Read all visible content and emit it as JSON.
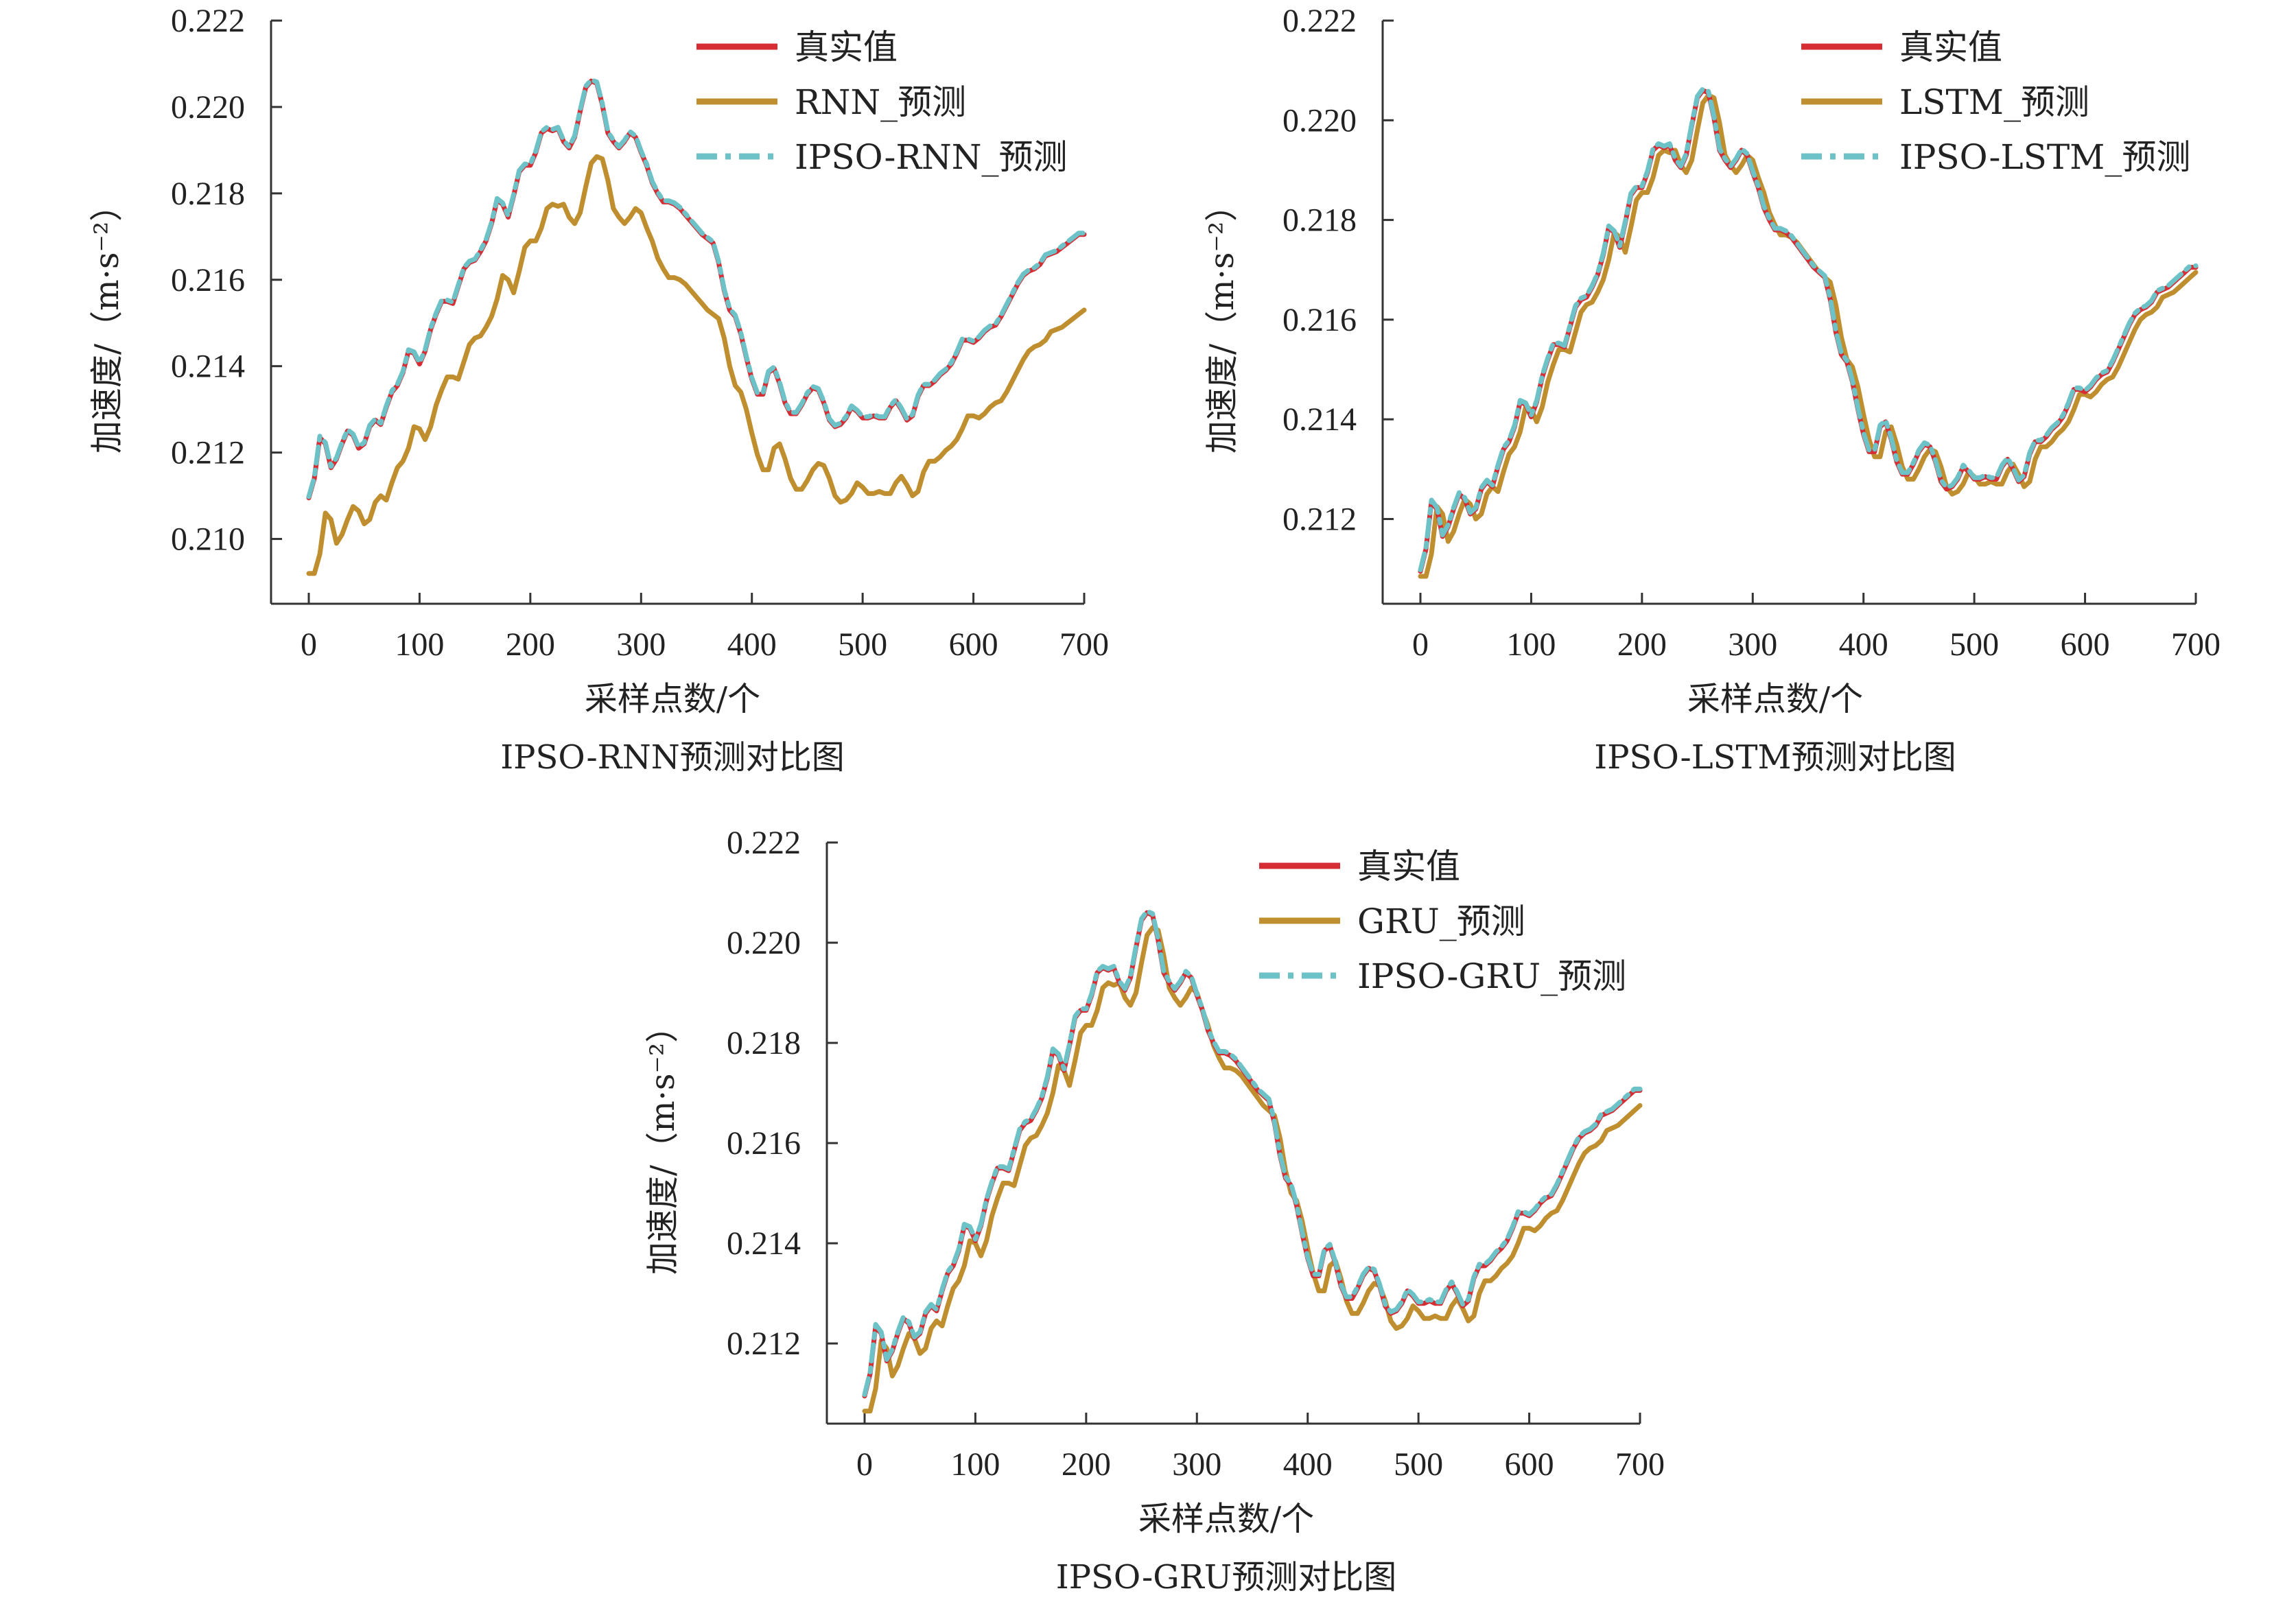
{
  "colors": {
    "actual": "#d62d34",
    "baseline": "#bf8f2f",
    "ipso": "#6cc2c6",
    "axis": "#333333"
  },
  "panel_a": {
    "xlabel": "采样点数/个",
    "ylabel": "加速度/（m·s⁻²）",
    "caption": "IPSO-RNN预测对比图",
    "legend": [
      "真实值",
      "RNN_预测",
      "IPSO-RNN_预测"
    ]
  },
  "panel_b": {
    "xlabel": "采样点数/个",
    "ylabel": "加速度/（m·s⁻²）",
    "caption": "IPSO-LSTM预测对比图",
    "legend": [
      "真实值",
      "LSTM_预测",
      "IPSO-LSTM_预测"
    ]
  },
  "panel_c": {
    "xlabel": "采样点数/个",
    "ylabel": "加速度/（m·s⁻²）",
    "caption": "IPSO-GRU预测对比图",
    "legend": [
      "真实值",
      "GRU_预测",
      "IPSO-GRU_预测"
    ]
  },
  "chart_data": [
    {
      "type": "line",
      "title": "",
      "xlabel": "采样点数/个",
      "ylabel": "加速度/（m·s⁻²）",
      "xlim": [
        0,
        700
      ],
      "ylim": [
        0.2085,
        0.222
      ],
      "xticks": [
        "0",
        "100",
        "200",
        "300",
        "400",
        "500",
        "600",
        "700"
      ],
      "yticks": [
        "0.210",
        "0.212",
        "0.214",
        "0.216",
        "0.218",
        "0.220",
        "0.222"
      ],
      "legend_position": "top-right",
      "grid": false,
      "series": [
        {
          "name": "真实值",
          "style": "solid",
          "x": [
            0,
            5,
            10,
            15,
            20,
            25,
            30,
            35,
            40,
            45,
            50,
            55,
            60,
            65,
            70,
            75,
            80,
            85,
            90,
            95,
            100,
            105,
            110,
            115,
            120,
            125,
            130,
            135,
            140,
            145,
            150,
            155,
            160,
            165,
            170,
            175,
            180,
            185,
            190,
            195,
            200,
            205,
            210,
            215,
            220,
            225,
            230,
            235,
            240,
            245,
            250,
            255,
            260,
            265,
            270,
            275,
            280,
            285,
            290,
            295,
            300,
            305,
            310,
            315,
            320,
            325,
            330,
            335,
            340,
            345,
            350,
            355,
            360,
            365,
            370,
            375,
            380,
            385,
            390,
            395,
            400,
            405,
            410,
            415,
            420,
            425,
            430,
            435,
            440,
            445,
            450,
            455,
            460,
            465,
            470,
            475,
            480,
            485,
            490,
            495,
            500,
            505,
            510,
            515,
            520,
            525,
            530,
            535,
            540,
            545,
            550,
            555,
            560,
            565,
            570,
            575,
            580,
            585,
            590,
            595,
            600,
            605,
            610,
            615,
            620,
            625,
            630,
            635,
            640,
            645,
            650,
            655,
            660,
            665,
            670,
            675,
            680,
            685,
            690,
            695,
            700
          ],
          "y": [
            0.21095,
            0.2114,
            0.21235,
            0.2122,
            0.21165,
            0.21185,
            0.2122,
            0.2125,
            0.2124,
            0.2121,
            0.2122,
            0.2126,
            0.21275,
            0.21265,
            0.21305,
            0.2134,
            0.21355,
            0.21385,
            0.21435,
            0.2143,
            0.21405,
            0.21435,
            0.21485,
            0.2152,
            0.2155,
            0.2155,
            0.21545,
            0.21585,
            0.21625,
            0.2164,
            0.21645,
            0.21665,
            0.2169,
            0.2173,
            0.21785,
            0.21775,
            0.21745,
            0.21795,
            0.2185,
            0.21865,
            0.21865,
            0.21895,
            0.2194,
            0.2195,
            0.21945,
            0.2195,
            0.2192,
            0.21905,
            0.2193,
            0.2199,
            0.22045,
            0.2206,
            0.22055,
            0.22005,
            0.2194,
            0.2192,
            0.21905,
            0.2192,
            0.2194,
            0.2193,
            0.21895,
            0.21865,
            0.21825,
            0.218,
            0.2178,
            0.2178,
            0.21775,
            0.21765,
            0.2175,
            0.21735,
            0.2172,
            0.21705,
            0.21695,
            0.21685,
            0.2164,
            0.21575,
            0.2153,
            0.21515,
            0.21475,
            0.2142,
            0.2137,
            0.21335,
            0.21335,
            0.21385,
            0.21395,
            0.2136,
            0.21315,
            0.2129,
            0.2129,
            0.2131,
            0.21335,
            0.2135,
            0.21345,
            0.21315,
            0.21275,
            0.2126,
            0.21265,
            0.2128,
            0.21305,
            0.21295,
            0.2128,
            0.2128,
            0.21285,
            0.2128,
            0.2128,
            0.21305,
            0.2132,
            0.213,
            0.21275,
            0.21285,
            0.2133,
            0.21355,
            0.21355,
            0.21365,
            0.2138,
            0.2139,
            0.21405,
            0.2143,
            0.2146,
            0.2146,
            0.21455,
            0.21465,
            0.2148,
            0.2149,
            0.21495,
            0.21515,
            0.2154,
            0.21565,
            0.2159,
            0.2161,
            0.2162,
            0.21625,
            0.21635,
            0.21655,
            0.2166,
            0.21665,
            0.21675,
            0.21685,
            0.21695,
            0.21705,
            0.21705
          ]
        },
        {
          "name": "RNN_预测",
          "style": "solid"
        },
        {
          "name": "IPSO-RNN_预测",
          "style": "dashdot"
        }
      ]
    },
    {
      "type": "line",
      "title": "",
      "xlabel": "采样点数/个",
      "ylabel": "加速度/（m·s⁻²）",
      "xlim": [
        0,
        700
      ],
      "ylim": [
        0.2103,
        0.222
      ],
      "xticks": [
        "0",
        "100",
        "200",
        "300",
        "400",
        "500",
        "600",
        "700"
      ],
      "yticks": [
        "0.212",
        "0.214",
        "0.216",
        "0.218",
        "0.220",
        "0.222"
      ],
      "legend_position": "top-right",
      "grid": false,
      "series": [
        {
          "name": "真实值",
          "style": "solid"
        },
        {
          "name": "LSTM_预测",
          "style": "solid"
        },
        {
          "name": "IPSO-LSTM_预测",
          "style": "dashdot"
        }
      ]
    },
    {
      "type": "line",
      "title": "",
      "xlabel": "采样点数/个",
      "ylabel": "加速度/（m·s⁻²）",
      "xlim": [
        0,
        700
      ],
      "ylim": [
        0.2104,
        0.222
      ],
      "xticks": [
        "0",
        "100",
        "200",
        "300",
        "400",
        "500",
        "600",
        "700"
      ],
      "yticks": [
        "0.212",
        "0.214",
        "0.216",
        "0.218",
        "0.220",
        "0.222"
      ],
      "legend_position": "top-right",
      "grid": false,
      "series": [
        {
          "name": "真实值",
          "style": "solid"
        },
        {
          "name": "GRU_预测",
          "style": "solid"
        },
        {
          "name": "IPSO-GRU_预测",
          "style": "dashdot"
        }
      ]
    }
  ]
}
